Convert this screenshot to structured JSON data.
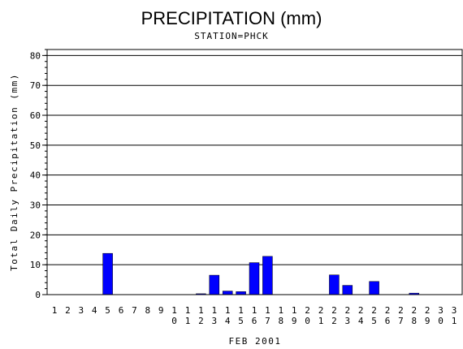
{
  "chart_data": {
    "type": "bar",
    "title": "PRECIPITATION (mm)",
    "subtitle": "STATION=PHCK",
    "xlabel": "FEB 2001",
    "ylabel": "Total Daily Precipitation (mm)",
    "ylim": [
      0,
      82
    ],
    "yticks": [
      0,
      10,
      20,
      30,
      40,
      50,
      60,
      70,
      80
    ],
    "grid": true,
    "bar_color": "#0000ff",
    "categories": [
      "1",
      "2",
      "3",
      "4",
      "5",
      "6",
      "7",
      "8",
      "9",
      "10",
      "11",
      "12",
      "13",
      "14",
      "15",
      "16",
      "17",
      "18",
      "19",
      "20",
      "21",
      "22",
      "23",
      "24",
      "25",
      "26",
      "27",
      "28",
      "29",
      "30",
      "31"
    ],
    "values": [
      0,
      0,
      0,
      0,
      13.8,
      0,
      0,
      0,
      0,
      0,
      0,
      0.3,
      6.5,
      1.2,
      1.0,
      10.7,
      12.8,
      0,
      0,
      0,
      0,
      6.6,
      3.1,
      0,
      4.4,
      0,
      0,
      0.5,
      0,
      0,
      0
    ]
  }
}
